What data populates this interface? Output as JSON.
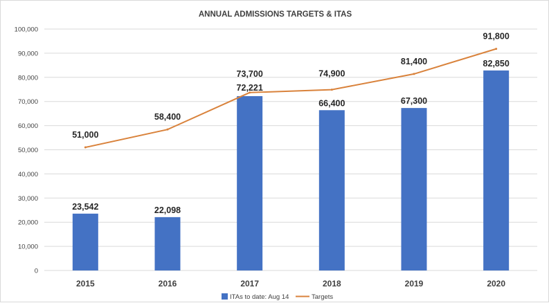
{
  "chart_data": {
    "type": "bar",
    "title": "ANNUAL ADMISSIONS TARGETS & ITAS",
    "categories": [
      "2015",
      "2016",
      "2017",
      "2018",
      "2019",
      "2020"
    ],
    "series": [
      {
        "name": "ITAs to date: Aug 14",
        "type": "bar",
        "color": "#4472c4",
        "values": [
          23542,
          22098,
          72221,
          66400,
          67300,
          82850
        ],
        "labels": [
          "23,542",
          "22,098",
          "72,221",
          "66,400",
          "67,300",
          "82,850"
        ]
      },
      {
        "name": "Targets",
        "type": "line",
        "color": "#d9823b",
        "values": [
          51000,
          58400,
          73700,
          74900,
          81400,
          91800
        ],
        "labels": [
          "51,000",
          "58,400",
          "73,700",
          "74,900",
          "81,400",
          "91,800"
        ]
      }
    ],
    "ylim": [
      0,
      100000
    ],
    "yticks": [
      0,
      10000,
      20000,
      30000,
      40000,
      50000,
      60000,
      70000,
      80000,
      90000,
      100000
    ],
    "ytick_labels": [
      "0",
      "10,000",
      "20,000",
      "30,000",
      "40,000",
      "50,000",
      "60,000",
      "70,000",
      "80,000",
      "90,000",
      "100,000"
    ],
    "grid": true,
    "legend": "bottom"
  }
}
